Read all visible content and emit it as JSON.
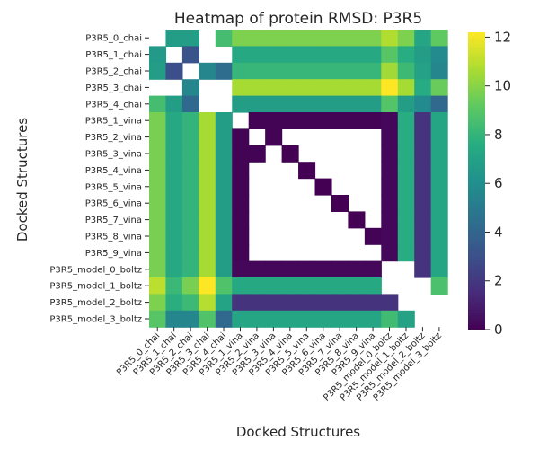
{
  "chart_data": {
    "type": "heatmap",
    "title": "Heatmap of protein RMSD: P3R5",
    "xlabel": "Docked Structures",
    "ylabel": "Docked Structures",
    "labels": [
      "P3R5_0_chai",
      "P3R5_1_chai",
      "P3R5_2_chai",
      "P3R5_3_chai",
      "P3R5_4_chai",
      "P3R5_1_vina",
      "P3R5_2_vina",
      "P3R5_3_vina",
      "P3R5_4_vina",
      "P3R5_5_vina",
      "P3R5_6_vina",
      "P3R5_7_vina",
      "P3R5_8_vina",
      "P3R5_9_vina",
      "P3R5_model_0_boltz",
      "P3R5_model_1_boltz",
      "P3R5_model_2_boltz",
      "P3R5_model_3_boltz"
    ],
    "values": [
      [
        0.0,
        6.8,
        6.8,
        0.0,
        8.5,
        9.8,
        9.8,
        9.8,
        9.8,
        9.8,
        9.8,
        9.8,
        9.8,
        9.8,
        10.8,
        9.8,
        7.2,
        9.2
      ],
      [
        6.6,
        0.0,
        3.2,
        0.0,
        0.0,
        7.4,
        7.4,
        7.4,
        7.4,
        7.4,
        7.4,
        7.4,
        7.4,
        7.4,
        9.0,
        7.6,
        6.8,
        5.8
      ],
      [
        6.8,
        3.0,
        0.0,
        5.6,
        4.4,
        8.1,
        8.1,
        8.1,
        8.1,
        8.1,
        8.1,
        8.1,
        8.1,
        8.1,
        10.5,
        8.3,
        7.0,
        5.6
      ],
      [
        0.0,
        0.0,
        5.6,
        0.0,
        0.0,
        10.6,
        10.6,
        10.6,
        10.6,
        10.6,
        10.6,
        10.6,
        10.6,
        10.6,
        12.2,
        10.6,
        7.5,
        9.4
      ],
      [
        8.5,
        6.8,
        4.2,
        0.0,
        0.0,
        6.8,
        6.8,
        6.8,
        6.8,
        6.8,
        6.8,
        6.8,
        6.8,
        6.8,
        8.9,
        6.8,
        5.8,
        4.2
      ],
      [
        9.7,
        7.4,
        8.0,
        10.6,
        6.8,
        0.0,
        0.1,
        0.1,
        0.1,
        0.1,
        0.1,
        0.1,
        0.1,
        0.1,
        0.2,
        7.6,
        1.8,
        7.2
      ],
      [
        9.7,
        7.4,
        8.0,
        10.6,
        6.8,
        0.1,
        0.0,
        0.1,
        0.0,
        0.0,
        0.0,
        0.0,
        0.0,
        0.0,
        0.2,
        7.6,
        1.8,
        7.2
      ],
      [
        9.7,
        7.4,
        8.0,
        10.6,
        6.8,
        0.1,
        0.1,
        0.0,
        0.0,
        0.0,
        0.0,
        0.0,
        0.0,
        0.0,
        0.2,
        7.6,
        1.8,
        7.2
      ],
      [
        9.7,
        7.4,
        8.0,
        10.6,
        6.8,
        0.1,
        0.0,
        0.0,
        0.0,
        0.0,
        0.0,
        0.0,
        0.0,
        0.0,
        0.2,
        7.6,
        1.8,
        7.2
      ],
      [
        9.7,
        7.4,
        8.0,
        10.6,
        6.8,
        0.1,
        0.0,
        0.0,
        0.1,
        0.0,
        0.0,
        0.0,
        0.0,
        0.0,
        0.2,
        7.6,
        1.8,
        7.2
      ],
      [
        9.7,
        7.4,
        8.0,
        10.6,
        6.8,
        0.1,
        0.0,
        0.0,
        0.0,
        0.1,
        0.0,
        0.0,
        0.0,
        0.0,
        0.2,
        7.6,
        1.8,
        7.2
      ],
      [
        9.7,
        7.4,
        8.0,
        10.6,
        6.8,
        0.1,
        0.0,
        0.0,
        0.0,
        0.0,
        0.1,
        0.0,
        0.0,
        0.0,
        0.2,
        7.6,
        1.8,
        7.2
      ],
      [
        9.7,
        7.4,
        8.0,
        10.6,
        6.8,
        0.1,
        0.0,
        0.0,
        0.0,
        0.0,
        0.0,
        0.1,
        0.0,
        0.1,
        0.2,
        7.6,
        1.8,
        7.2
      ],
      [
        9.7,
        7.4,
        8.0,
        10.6,
        6.8,
        0.1,
        0.0,
        0.0,
        0.0,
        0.0,
        0.0,
        0.0,
        0.1,
        0.1,
        0.2,
        7.6,
        1.8,
        7.2
      ],
      [
        9.7,
        7.4,
        8.0,
        10.6,
        6.8,
        0.2,
        0.2,
        0.2,
        0.2,
        0.2,
        0.2,
        0.2,
        0.2,
        0.2,
        0.0,
        0.0,
        1.8,
        7.2
      ],
      [
        11.0,
        8.2,
        9.7,
        12.2,
        8.8,
        7.4,
        7.4,
        7.4,
        7.4,
        7.4,
        7.4,
        7.4,
        7.4,
        7.4,
        0.0,
        0.0,
        0.0,
        8.7
      ],
      [
        9.8,
        7.7,
        8.3,
        10.9,
        7.1,
        1.8,
        1.8,
        1.8,
        1.8,
        1.8,
        1.8,
        1.8,
        1.8,
        1.8,
        1.8,
        0.0,
        0.0,
        7.0
      ],
      [
        9.0,
        5.6,
        5.6,
        8.8,
        4.2,
        7.2,
        7.2,
        7.2,
        7.2,
        7.2,
        7.2,
        7.2,
        7.2,
        7.2,
        8.4,
        7.0,
        0.0,
        0.0
      ]
    ],
    "mask": [
      [
        true,
        false,
        false,
        true,
        false,
        false,
        false,
        false,
        false,
        false,
        false,
        false,
        false,
        false,
        false,
        false,
        false,
        false
      ],
      [
        false,
        true,
        false,
        true,
        true,
        false,
        false,
        false,
        false,
        false,
        false,
        false,
        false,
        false,
        false,
        false,
        false,
        false
      ],
      [
        false,
        false,
        true,
        false,
        false,
        false,
        false,
        false,
        false,
        false,
        false,
        false,
        false,
        false,
        false,
        false,
        false,
        false
      ],
      [
        true,
        true,
        false,
        true,
        true,
        false,
        false,
        false,
        false,
        false,
        false,
        false,
        false,
        false,
        false,
        false,
        false,
        false
      ],
      [
        false,
        false,
        false,
        true,
        true,
        false,
        false,
        false,
        false,
        false,
        false,
        false,
        false,
        false,
        false,
        false,
        false,
        false
      ],
      [
        false,
        false,
        false,
        false,
        false,
        true,
        false,
        false,
        false,
        false,
        false,
        false,
        false,
        false,
        false,
        false,
        false,
        false
      ],
      [
        false,
        false,
        false,
        false,
        false,
        false,
        true,
        false,
        true,
        true,
        true,
        true,
        true,
        true,
        false,
        false,
        false,
        false
      ],
      [
        false,
        false,
        false,
        false,
        false,
        false,
        false,
        true,
        false,
        true,
        true,
        true,
        true,
        true,
        false,
        false,
        false,
        false
      ],
      [
        false,
        false,
        false,
        false,
        false,
        false,
        true,
        true,
        true,
        false,
        true,
        true,
        true,
        true,
        false,
        false,
        false,
        false
      ],
      [
        false,
        false,
        false,
        false,
        false,
        false,
        true,
        true,
        true,
        true,
        false,
        true,
        true,
        true,
        false,
        false,
        false,
        false
      ],
      [
        false,
        false,
        false,
        false,
        false,
        false,
        true,
        true,
        true,
        true,
        true,
        false,
        true,
        true,
        false,
        false,
        false,
        false
      ],
      [
        false,
        false,
        false,
        false,
        false,
        false,
        true,
        true,
        true,
        true,
        true,
        true,
        false,
        true,
        false,
        false,
        false,
        false
      ],
      [
        false,
        false,
        false,
        false,
        false,
        false,
        true,
        true,
        true,
        true,
        true,
        true,
        true,
        false,
        false,
        false,
        false,
        false
      ],
      [
        false,
        false,
        false,
        false,
        false,
        false,
        true,
        true,
        true,
        true,
        true,
        true,
        true,
        true,
        false,
        false,
        false,
        false
      ],
      [
        false,
        false,
        false,
        false,
        false,
        false,
        false,
        false,
        false,
        false,
        false,
        false,
        false,
        false,
        true,
        true,
        false,
        false
      ],
      [
        false,
        false,
        false,
        false,
        false,
        false,
        false,
        false,
        false,
        false,
        false,
        false,
        false,
        false,
        true,
        true,
        true,
        false
      ],
      [
        false,
        false,
        false,
        false,
        false,
        false,
        false,
        false,
        false,
        false,
        false,
        false,
        false,
        false,
        false,
        true,
        true,
        true
      ],
      [
        false,
        false,
        false,
        false,
        false,
        false,
        false,
        false,
        false,
        false,
        false,
        false,
        false,
        false,
        false,
        false,
        true,
        true
      ]
    ],
    "colormap": "viridis",
    "vmin": 0,
    "vmax": 12.2,
    "colorbar_ticks": [
      0,
      2,
      4,
      6,
      8,
      10,
      12
    ]
  }
}
